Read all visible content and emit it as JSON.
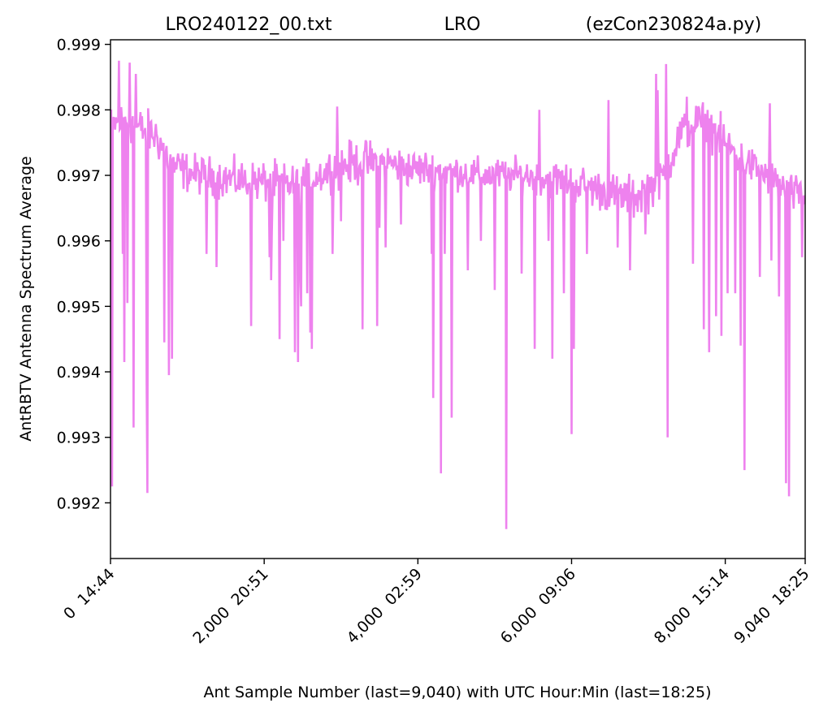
{
  "chart_data": {
    "type": "line",
    "title_parts": [
      "LRO240122_00.txt",
      "LRO",
      "(ezCon230824a.py)"
    ],
    "xlabel": "Ant Sample Number (last=9,040) with UTC Hour:Min (last=18:25)",
    "ylabel": "AntRBTV Antenna Spectrum Average",
    "xlim": [
      0,
      9040
    ],
    "ylim": [
      0.99115,
      0.99907
    ],
    "grid": false,
    "x_ticks": [
      {
        "value": 0,
        "label": "0  14:44"
      },
      {
        "value": 2000,
        "label": "2,000  20:51"
      },
      {
        "value": 4000,
        "label": "4,000  02:59"
      },
      {
        "value": 6000,
        "label": "6,000  09:06"
      },
      {
        "value": 8000,
        "label": "8,000  15:14"
      },
      {
        "value": 9040,
        "label": "9,040  18:25"
      }
    ],
    "y_ticks": [
      {
        "value": 0.992,
        "label": "0.992"
      },
      {
        "value": 0.993,
        "label": "0.993"
      },
      {
        "value": 0.994,
        "label": "0.994"
      },
      {
        "value": 0.995,
        "label": "0.995"
      },
      {
        "value": 0.996,
        "label": "0.996"
      },
      {
        "value": 0.997,
        "label": "0.997"
      },
      {
        "value": 0.998,
        "label": "0.998"
      },
      {
        "value": 0.999,
        "label": "0.999"
      }
    ],
    "series": [
      {
        "color": "#ee82ee",
        "baseline": {
          "x": [
            0,
            200,
            400,
            600,
            800,
            1000,
            1200,
            1500,
            1800,
            2100,
            2400,
            2700,
            3000,
            3300,
            3600,
            3900,
            4200,
            4500,
            4800,
            5100,
            5400,
            5700,
            6000,
            6300,
            6600,
            6800,
            7000,
            7200,
            7400,
            7600,
            7800,
            8000,
            8200,
            8400,
            8600,
            8800,
            9040
          ],
          "center": [
            0.99775,
            0.99785,
            0.9977,
            0.9976,
            0.99715,
            0.99705,
            0.997,
            0.99695,
            0.9969,
            0.9969,
            0.99685,
            0.997,
            0.99715,
            0.9972,
            0.9972,
            0.9971,
            0.9971,
            0.99705,
            0.997,
            0.997,
            0.997,
            0.99695,
            0.9969,
            0.9968,
            0.9967,
            0.99665,
            0.9968,
            0.997,
            0.9976,
            0.9978,
            0.99775,
            0.9975,
            0.99725,
            0.9971,
            0.99695,
            0.99675,
            0.99665
          ],
          "spread": [
            0.0004,
            0.00045,
            0.00045,
            0.00045,
            0.00042,
            0.0004,
            0.0004,
            0.0004,
            0.00042,
            0.00042,
            0.0004,
            0.0004,
            0.00045,
            0.00045,
            0.0004,
            0.00038,
            0.00038,
            0.00035,
            0.00035,
            0.00035,
            0.00035,
            0.00038,
            0.0004,
            0.0004,
            0.00042,
            0.00045,
            0.00045,
            0.00045,
            0.00045,
            0.00045,
            0.00045,
            0.00042,
            0.0004,
            0.00038,
            0.00038,
            0.0004,
            0.0004
          ]
        },
        "spikes": [
          {
            "x": 15,
            "y": 0.99225
          },
          {
            "x": 110,
            "y": 0.99455
          },
          {
            "x": 160,
            "y": 0.9958
          },
          {
            "x": 175,
            "y": 0.99415
          },
          {
            "x": 220,
            "y": 0.99505
          },
          {
            "x": 300,
            "y": 0.99315
          },
          {
            "x": 470,
            "y": 0.9938
          },
          {
            "x": 480,
            "y": 0.99215
          },
          {
            "x": 700,
            "y": 0.99445
          },
          {
            "x": 760,
            "y": 0.99395
          },
          {
            "x": 800,
            "y": 0.9942
          },
          {
            "x": 1250,
            "y": 0.9958
          },
          {
            "x": 1380,
            "y": 0.9956
          },
          {
            "x": 1830,
            "y": 0.9947
          },
          {
            "x": 2070,
            "y": 0.99575
          },
          {
            "x": 2090,
            "y": 0.9954
          },
          {
            "x": 2100,
            "y": 0.99615
          },
          {
            "x": 2200,
            "y": 0.9945
          },
          {
            "x": 2250,
            "y": 0.996
          },
          {
            "x": 2400,
            "y": 0.9943
          },
          {
            "x": 2440,
            "y": 0.99415
          },
          {
            "x": 2470,
            "y": 0.9955
          },
          {
            "x": 2480,
            "y": 0.995
          },
          {
            "x": 2560,
            "y": 0.9952
          },
          {
            "x": 2600,
            "y": 0.9946
          },
          {
            "x": 2620,
            "y": 0.99435
          },
          {
            "x": 2890,
            "y": 0.9958
          },
          {
            "x": 3000,
            "y": 0.9963
          },
          {
            "x": 3280,
            "y": 0.99465
          },
          {
            "x": 3500,
            "y": 0.9962
          },
          {
            "x": 3470,
            "y": 0.9947
          },
          {
            "x": 3580,
            "y": 0.9959
          },
          {
            "x": 3780,
            "y": 0.99625
          },
          {
            "x": 4180,
            "y": 0.9958
          },
          {
            "x": 4200,
            "y": 0.9936
          },
          {
            "x": 4300,
            "y": 0.99245
          },
          {
            "x": 4350,
            "y": 0.9958
          },
          {
            "x": 4440,
            "y": 0.9933
          },
          {
            "x": 4650,
            "y": 0.99555
          },
          {
            "x": 4820,
            "y": 0.996
          },
          {
            "x": 5000,
            "y": 0.99525
          },
          {
            "x": 5150,
            "y": 0.9916
          },
          {
            "x": 5350,
            "y": 0.9955
          },
          {
            "x": 5520,
            "y": 0.99435
          },
          {
            "x": 5700,
            "y": 0.996
          },
          {
            "x": 5750,
            "y": 0.9942
          },
          {
            "x": 5900,
            "y": 0.9952
          },
          {
            "x": 6000,
            "y": 0.99305
          },
          {
            "x": 6030,
            "y": 0.99435
          },
          {
            "x": 6200,
            "y": 0.9958
          },
          {
            "x": 6600,
            "y": 0.9959
          },
          {
            "x": 6760,
            "y": 0.99555
          },
          {
            "x": 6960,
            "y": 0.9961
          },
          {
            "x": 7250,
            "y": 0.993
          },
          {
            "x": 7580,
            "y": 0.99565
          },
          {
            "x": 7720,
            "y": 0.99465
          },
          {
            "x": 7790,
            "y": 0.9943
          },
          {
            "x": 7880,
            "y": 0.99485
          },
          {
            "x": 7950,
            "y": 0.99455
          },
          {
            "x": 8030,
            "y": 0.9952
          },
          {
            "x": 8130,
            "y": 0.9952
          },
          {
            "x": 8200,
            "y": 0.9944
          },
          {
            "x": 8250,
            "y": 0.9925
          },
          {
            "x": 8450,
            "y": 0.99545
          },
          {
            "x": 8600,
            "y": 0.9957
          },
          {
            "x": 8700,
            "y": 0.99515
          },
          {
            "x": 8790,
            "y": 0.9923
          },
          {
            "x": 8830,
            "y": 0.9921
          },
          {
            "x": 9000,
            "y": 0.99575
          }
        ],
        "peaks": [
          {
            "x": 110,
            "y": 0.99875
          },
          {
            "x": 250,
            "y": 0.99872
          },
          {
            "x": 330,
            "y": 0.99855
          },
          {
            "x": 7100,
            "y": 0.99855
          },
          {
            "x": 7230,
            "y": 0.9987
          },
          {
            "x": 7120,
            "y": 0.9983
          },
          {
            "x": 6480,
            "y": 0.99815
          },
          {
            "x": 5580,
            "y": 0.998
          },
          {
            "x": 7500,
            "y": 0.9982
          },
          {
            "x": 2950,
            "y": 0.99805
          },
          {
            "x": 8580,
            "y": 0.9981
          }
        ]
      }
    ]
  }
}
